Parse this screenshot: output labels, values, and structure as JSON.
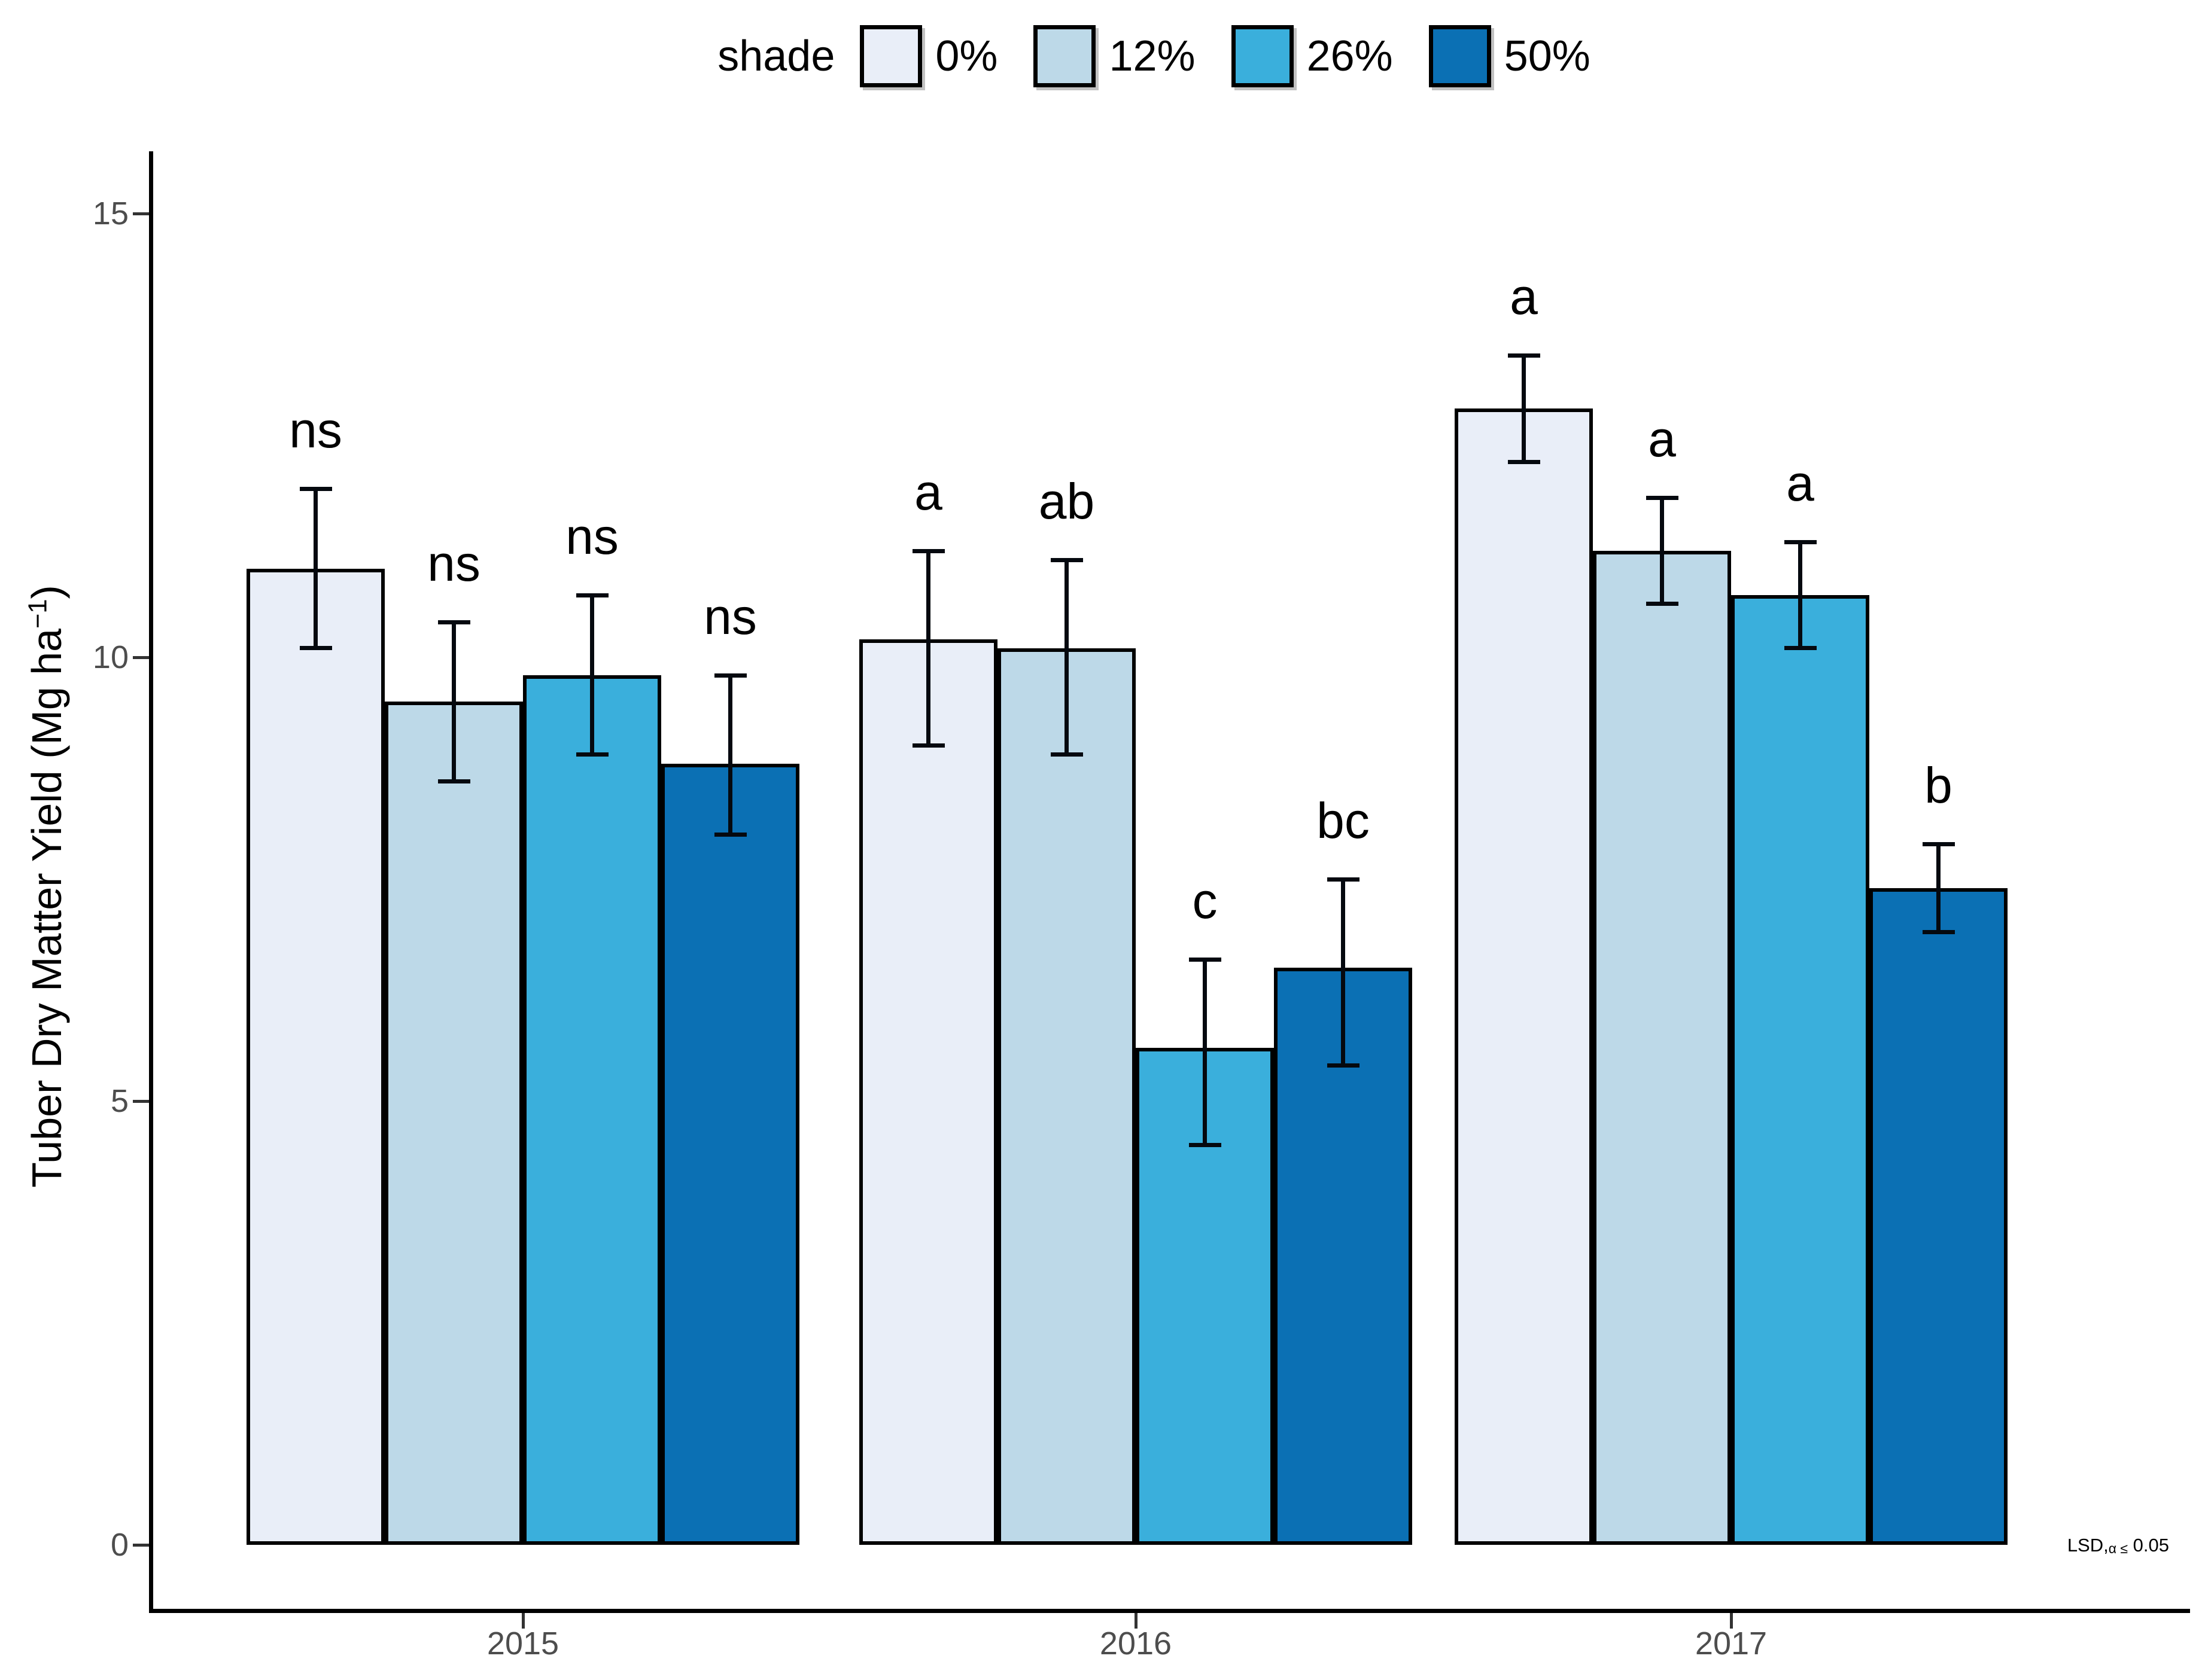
{
  "legend": {
    "title": "shade",
    "items": [
      {
        "label": "0%",
        "color": "#E9EEF8"
      },
      {
        "label": "12%",
        "color": "#BDD9E8"
      },
      {
        "label": "26%",
        "color": "#3AAFDC"
      },
      {
        "label": "50%",
        "color": "#0B70B4"
      }
    ]
  },
  "y_axis": {
    "label_main": "Tuber Dry Matter Yield (Mg ha",
    "label_sup": "−1",
    "label_end": ")",
    "ticks": [
      "0",
      "5",
      "10",
      "15"
    ]
  },
  "x_axis": {
    "ticks": [
      "2015",
      "2016",
      "2017"
    ]
  },
  "annotation": {
    "prefix": "LSD,",
    "alpha": "α ≤",
    "value": " 0.05"
  },
  "colors": {
    "axis": "#000000",
    "tick_marks": "#333333",
    "tick_labels": "#4D4D4D",
    "error_bars": "#05090f"
  },
  "chart_data": {
    "type": "bar",
    "title": "",
    "ylabel": "Tuber Dry Matter Yield (Mg ha⁻¹)",
    "xlabel": "",
    "legend_title": "shade",
    "legend_position": "top",
    "grid": false,
    "categories": [
      "2015",
      "2016",
      "2017"
    ],
    "yticks": [
      0,
      5,
      10,
      15
    ],
    "ylim": [
      0,
      15.7
    ],
    "annotation": "LSD,α ≤ 0.05",
    "series": [
      {
        "name": "0%",
        "color": "#E9EEF8",
        "values": [
          11.0,
          10.2,
          12.8
        ],
        "err_upper": [
          11.9,
          11.2,
          13.4
        ],
        "err_lower": [
          10.1,
          9.0,
          12.2
        ],
        "sig_letters": [
          "ns",
          "a",
          "a"
        ]
      },
      {
        "name": "12%",
        "color": "#BDD9E8",
        "values": [
          9.5,
          10.1,
          11.2
        ],
        "err_upper": [
          10.4,
          11.1,
          11.8
        ],
        "err_lower": [
          8.6,
          8.9,
          10.6
        ],
        "sig_letters": [
          "ns",
          "ab",
          "a"
        ]
      },
      {
        "name": "26%",
        "color": "#3AAFDC",
        "values": [
          9.8,
          5.6,
          10.7
        ],
        "err_upper": [
          10.7,
          6.6,
          11.3
        ],
        "err_lower": [
          8.9,
          4.5,
          10.1
        ],
        "sig_letters": [
          "ns",
          "c",
          "a"
        ]
      },
      {
        "name": "50%",
        "color": "#0B70B4",
        "values": [
          8.8,
          6.5,
          7.4
        ],
        "err_upper": [
          9.8,
          7.5,
          7.9
        ],
        "err_lower": [
          8.0,
          5.4,
          6.9
        ],
        "sig_letters": [
          "ns",
          "bc",
          "b"
        ]
      }
    ]
  }
}
